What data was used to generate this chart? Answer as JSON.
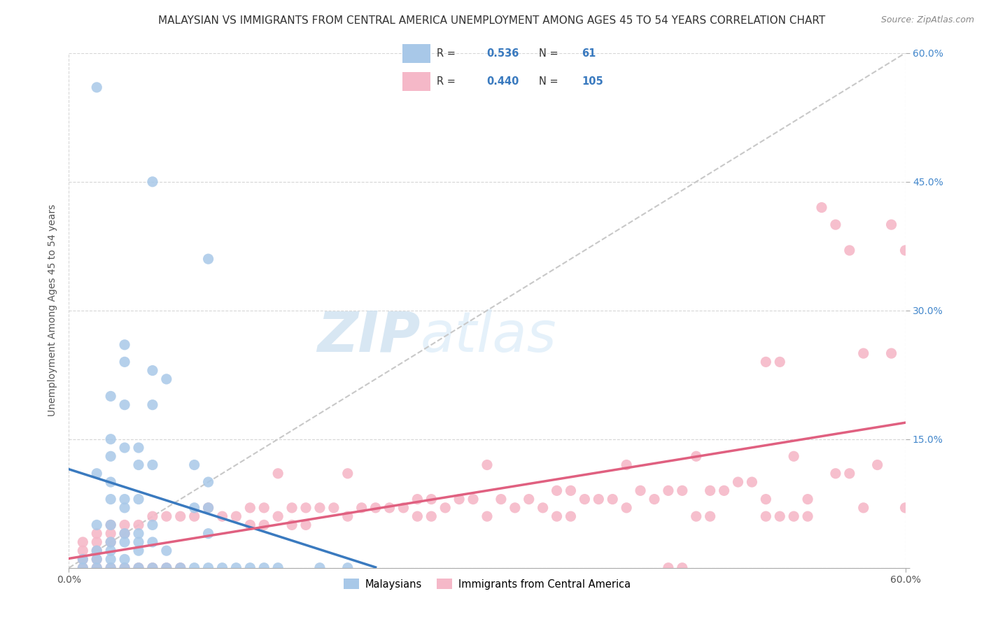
{
  "title": "MALAYSIAN VS IMMIGRANTS FROM CENTRAL AMERICA UNEMPLOYMENT AMONG AGES 45 TO 54 YEARS CORRELATION CHART",
  "source": "Source: ZipAtlas.com",
  "ylabel": "Unemployment Among Ages 45 to 54 years",
  "xlim": [
    0.0,
    0.6
  ],
  "ylim": [
    0.0,
    0.6
  ],
  "xticks": [
    0.0,
    0.6
  ],
  "xtick_labels": [
    "0.0%",
    "60.0%"
  ],
  "yticks": [
    0.0,
    0.15,
    0.3,
    0.45,
    0.6
  ],
  "ytick_labels_right": [
    "",
    "15.0%",
    "30.0%",
    "45.0%",
    "60.0%"
  ],
  "blue_color": "#a8c8e8",
  "pink_color": "#f5b8c8",
  "blue_line_color": "#3a7abf",
  "pink_line_color": "#e06080",
  "diagonal_color": "#c8c8c8",
  "watermark_zip": "ZIP",
  "watermark_atlas": "atlas",
  "legend_label1": "Malaysians",
  "legend_label2": "Immigrants from Central America",
  "title_fontsize": 11,
  "source_fontsize": 9,
  "axis_label_fontsize": 10,
  "tick_fontsize": 10,
  "right_tick_color": "#4488cc",
  "blue_scatter": [
    [
      0.02,
      0.56
    ],
    [
      0.06,
      0.45
    ],
    [
      0.1,
      0.36
    ],
    [
      0.04,
      0.26
    ],
    [
      0.04,
      0.24
    ],
    [
      0.06,
      0.23
    ],
    [
      0.07,
      0.22
    ],
    [
      0.03,
      0.2
    ],
    [
      0.04,
      0.19
    ],
    [
      0.06,
      0.19
    ],
    [
      0.03,
      0.15
    ],
    [
      0.04,
      0.14
    ],
    [
      0.05,
      0.14
    ],
    [
      0.03,
      0.13
    ],
    [
      0.05,
      0.12
    ],
    [
      0.06,
      0.12
    ],
    [
      0.09,
      0.12
    ],
    [
      0.02,
      0.11
    ],
    [
      0.03,
      0.1
    ],
    [
      0.1,
      0.1
    ],
    [
      0.03,
      0.08
    ],
    [
      0.04,
      0.08
    ],
    [
      0.05,
      0.08
    ],
    [
      0.04,
      0.07
    ],
    [
      0.09,
      0.07
    ],
    [
      0.1,
      0.07
    ],
    [
      0.02,
      0.05
    ],
    [
      0.03,
      0.05
    ],
    [
      0.06,
      0.05
    ],
    [
      0.04,
      0.04
    ],
    [
      0.05,
      0.04
    ],
    [
      0.1,
      0.04
    ],
    [
      0.03,
      0.03
    ],
    [
      0.04,
      0.03
    ],
    [
      0.05,
      0.03
    ],
    [
      0.06,
      0.03
    ],
    [
      0.02,
      0.02
    ],
    [
      0.03,
      0.02
    ],
    [
      0.05,
      0.02
    ],
    [
      0.07,
      0.02
    ],
    [
      0.01,
      0.01
    ],
    [
      0.02,
      0.01
    ],
    [
      0.03,
      0.01
    ],
    [
      0.04,
      0.01
    ],
    [
      0.01,
      0.0
    ],
    [
      0.02,
      0.0
    ],
    [
      0.03,
      0.0
    ],
    [
      0.04,
      0.0
    ],
    [
      0.05,
      0.0
    ],
    [
      0.06,
      0.0
    ],
    [
      0.07,
      0.0
    ],
    [
      0.08,
      0.0
    ],
    [
      0.09,
      0.0
    ],
    [
      0.1,
      0.0
    ],
    [
      0.11,
      0.0
    ],
    [
      0.12,
      0.0
    ],
    [
      0.13,
      0.0
    ],
    [
      0.14,
      0.0
    ],
    [
      0.15,
      0.0
    ],
    [
      0.18,
      0.0
    ],
    [
      0.2,
      0.0
    ]
  ],
  "pink_scatter": [
    [
      0.54,
      0.42
    ],
    [
      0.55,
      0.4
    ],
    [
      0.59,
      0.4
    ],
    [
      0.56,
      0.37
    ],
    [
      0.6,
      0.37
    ],
    [
      0.57,
      0.25
    ],
    [
      0.59,
      0.25
    ],
    [
      0.5,
      0.24
    ],
    [
      0.51,
      0.24
    ],
    [
      0.45,
      0.13
    ],
    [
      0.52,
      0.13
    ],
    [
      0.3,
      0.12
    ],
    [
      0.4,
      0.12
    ],
    [
      0.58,
      0.12
    ],
    [
      0.15,
      0.11
    ],
    [
      0.2,
      0.11
    ],
    [
      0.55,
      0.11
    ],
    [
      0.56,
      0.11
    ],
    [
      0.48,
      0.1
    ],
    [
      0.49,
      0.1
    ],
    [
      0.35,
      0.09
    ],
    [
      0.36,
      0.09
    ],
    [
      0.41,
      0.09
    ],
    [
      0.43,
      0.09
    ],
    [
      0.44,
      0.09
    ],
    [
      0.46,
      0.09
    ],
    [
      0.47,
      0.09
    ],
    [
      0.25,
      0.08
    ],
    [
      0.26,
      0.08
    ],
    [
      0.28,
      0.08
    ],
    [
      0.29,
      0.08
    ],
    [
      0.31,
      0.08
    ],
    [
      0.33,
      0.08
    ],
    [
      0.37,
      0.08
    ],
    [
      0.38,
      0.08
    ],
    [
      0.39,
      0.08
    ],
    [
      0.42,
      0.08
    ],
    [
      0.5,
      0.08
    ],
    [
      0.53,
      0.08
    ],
    [
      0.1,
      0.07
    ],
    [
      0.13,
      0.07
    ],
    [
      0.14,
      0.07
    ],
    [
      0.16,
      0.07
    ],
    [
      0.17,
      0.07
    ],
    [
      0.18,
      0.07
    ],
    [
      0.19,
      0.07
    ],
    [
      0.21,
      0.07
    ],
    [
      0.22,
      0.07
    ],
    [
      0.23,
      0.07
    ],
    [
      0.24,
      0.07
    ],
    [
      0.27,
      0.07
    ],
    [
      0.32,
      0.07
    ],
    [
      0.34,
      0.07
    ],
    [
      0.4,
      0.07
    ],
    [
      0.57,
      0.07
    ],
    [
      0.6,
      0.07
    ],
    [
      0.06,
      0.06
    ],
    [
      0.07,
      0.06
    ],
    [
      0.08,
      0.06
    ],
    [
      0.09,
      0.06
    ],
    [
      0.11,
      0.06
    ],
    [
      0.12,
      0.06
    ],
    [
      0.15,
      0.06
    ],
    [
      0.2,
      0.06
    ],
    [
      0.25,
      0.06
    ],
    [
      0.26,
      0.06
    ],
    [
      0.3,
      0.06
    ],
    [
      0.35,
      0.06
    ],
    [
      0.36,
      0.06
    ],
    [
      0.45,
      0.06
    ],
    [
      0.46,
      0.06
    ],
    [
      0.5,
      0.06
    ],
    [
      0.51,
      0.06
    ],
    [
      0.52,
      0.06
    ],
    [
      0.53,
      0.06
    ],
    [
      0.03,
      0.05
    ],
    [
      0.04,
      0.05
    ],
    [
      0.05,
      0.05
    ],
    [
      0.13,
      0.05
    ],
    [
      0.14,
      0.05
    ],
    [
      0.16,
      0.05
    ],
    [
      0.17,
      0.05
    ],
    [
      0.02,
      0.04
    ],
    [
      0.03,
      0.04
    ],
    [
      0.04,
      0.04
    ],
    [
      0.01,
      0.03
    ],
    [
      0.02,
      0.03
    ],
    [
      0.03,
      0.03
    ],
    [
      0.01,
      0.02
    ],
    [
      0.02,
      0.02
    ],
    [
      0.01,
      0.01
    ],
    [
      0.02,
      0.01
    ],
    [
      0.01,
      0.0
    ],
    [
      0.02,
      0.0
    ],
    [
      0.03,
      0.0
    ],
    [
      0.04,
      0.0
    ],
    [
      0.05,
      0.0
    ],
    [
      0.06,
      0.0
    ],
    [
      0.07,
      0.0
    ],
    [
      0.08,
      0.0
    ],
    [
      0.43,
      0.0
    ],
    [
      0.44,
      0.0
    ]
  ]
}
